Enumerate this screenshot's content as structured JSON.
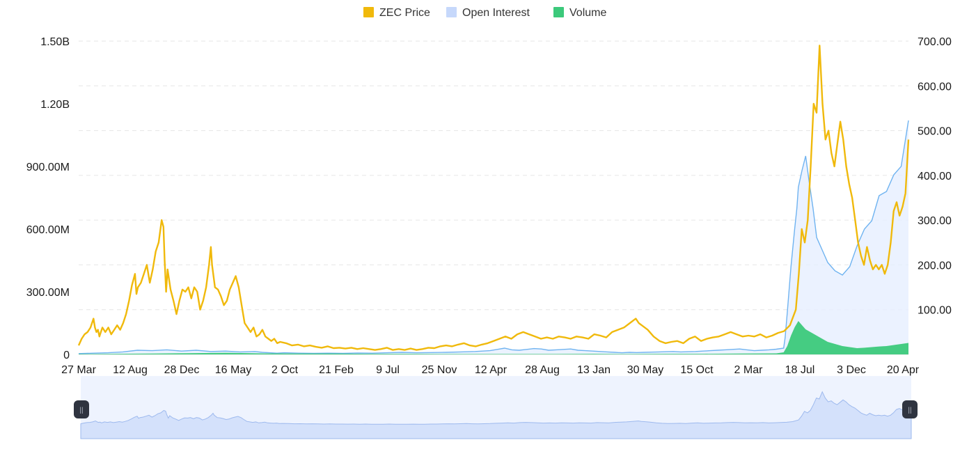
{
  "chart_data": {
    "type": "line",
    "legend": [
      {
        "name": "ZEC Price",
        "color": "#f0b90b"
      },
      {
        "name": "Open Interest",
        "color": "#c6d8fb"
      },
      {
        "name": "Volume",
        "color": "#3cc97b"
      }
    ],
    "legend_position": "top-center",
    "x_tick_labels": [
      "27 Mar",
      "12 Aug",
      "28 Dec",
      "16 May",
      "2 Oct",
      "21 Feb",
      "9 Jul",
      "25 Nov",
      "12 Apr",
      "28 Aug",
      "13 Jan",
      "30 May",
      "15 Oct",
      "2 Mar",
      "18 Jul",
      "3 Dec",
      "20 Apr"
    ],
    "y_left": {
      "tick_labels": [
        "0",
        "300.00M",
        "600.00M",
        "900.00M",
        "1.20B",
        "1.50B"
      ],
      "range": [
        0,
        1500000000
      ]
    },
    "y_right": {
      "tick_labels": [
        "100.00",
        "200.00",
        "300.00",
        "400.00",
        "500.00",
        "600.00",
        "700.00"
      ],
      "range": [
        0,
        700
      ]
    },
    "grid": true,
    "price_points": [
      [
        0,
        20
      ],
      [
        1,
        35
      ],
      [
        2,
        45
      ],
      [
        3,
        50
      ],
      [
        4,
        60
      ],
      [
        5,
        80
      ],
      [
        5.5,
        60
      ],
      [
        6,
        50
      ],
      [
        6.5,
        55
      ],
      [
        7,
        40
      ],
      [
        7.5,
        50
      ],
      [
        8,
        60
      ],
      [
        9,
        50
      ],
      [
        10,
        60
      ],
      [
        11,
        45
      ],
      [
        12,
        55
      ],
      [
        13,
        65
      ],
      [
        14,
        55
      ],
      [
        15,
        70
      ],
      [
        16,
        90
      ],
      [
        17,
        120
      ],
      [
        18,
        155
      ],
      [
        19,
        180
      ],
      [
        19.5,
        135
      ],
      [
        20,
        150
      ],
      [
        21,
        160
      ],
      [
        22,
        180
      ],
      [
        23,
        200
      ],
      [
        24,
        160
      ],
      [
        25,
        190
      ],
      [
        26,
        230
      ],
      [
        27,
        250
      ],
      [
        28,
        300
      ],
      [
        28.6,
        285
      ],
      [
        29,
        210
      ],
      [
        29.5,
        140
      ],
      [
        30,
        190
      ],
      [
        31,
        145
      ],
      [
        32,
        120
      ],
      [
        33,
        90
      ],
      [
        34,
        120
      ],
      [
        35,
        145
      ],
      [
        36,
        140
      ],
      [
        37,
        150
      ],
      [
        38,
        125
      ],
      [
        39,
        150
      ],
      [
        40,
        140
      ],
      [
        41,
        100
      ],
      [
        42,
        120
      ],
      [
        43,
        150
      ],
      [
        44,
        200
      ],
      [
        44.6,
        240
      ],
      [
        45,
        200
      ],
      [
        46,
        150
      ],
      [
        47,
        145
      ],
      [
        48,
        130
      ],
      [
        49,
        110
      ],
      [
        50,
        120
      ],
      [
        51,
        145
      ],
      [
        52,
        160
      ],
      [
        53,
        175
      ],
      [
        54,
        150
      ],
      [
        55,
        110
      ],
      [
        56,
        70
      ],
      [
        57,
        60
      ],
      [
        58,
        50
      ],
      [
        59,
        60
      ],
      [
        60,
        40
      ],
      [
        61,
        45
      ],
      [
        62,
        55
      ],
      [
        63,
        40
      ],
      [
        64,
        35
      ],
      [
        65,
        30
      ],
      [
        66,
        35
      ],
      [
        67,
        25
      ],
      [
        68,
        28
      ],
      [
        70,
        25
      ],
      [
        72,
        20
      ],
      [
        74,
        22
      ],
      [
        76,
        18
      ],
      [
        78,
        20
      ],
      [
        80,
        17
      ],
      [
        82,
        15
      ],
      [
        84,
        18
      ],
      [
        86,
        14
      ],
      [
        88,
        15
      ],
      [
        90,
        13
      ],
      [
        92,
        15
      ],
      [
        94,
        12
      ],
      [
        96,
        14
      ],
      [
        98,
        12
      ],
      [
        100,
        10
      ],
      [
        102,
        12
      ],
      [
        104,
        15
      ],
      [
        106,
        10
      ],
      [
        108,
        12
      ],
      [
        110,
        10
      ],
      [
        112,
        13
      ],
      [
        114,
        10
      ],
      [
        116,
        12
      ],
      [
        118,
        15
      ],
      [
        120,
        14
      ],
      [
        122,
        18
      ],
      [
        124,
        20
      ],
      [
        126,
        18
      ],
      [
        128,
        22
      ],
      [
        130,
        25
      ],
      [
        132,
        20
      ],
      [
        134,
        18
      ],
      [
        136,
        22
      ],
      [
        138,
        25
      ],
      [
        140,
        30
      ],
      [
        142,
        35
      ],
      [
        144,
        40
      ],
      [
        146,
        35
      ],
      [
        148,
        45
      ],
      [
        150,
        50
      ],
      [
        152,
        45
      ],
      [
        154,
        40
      ],
      [
        156,
        35
      ],
      [
        158,
        38
      ],
      [
        160,
        35
      ],
      [
        162,
        40
      ],
      [
        164,
        38
      ],
      [
        166,
        35
      ],
      [
        168,
        40
      ],
      [
        170,
        38
      ],
      [
        172,
        35
      ],
      [
        174,
        45
      ],
      [
        176,
        42
      ],
      [
        178,
        38
      ],
      [
        180,
        50
      ],
      [
        182,
        55
      ],
      [
        184,
        60
      ],
      [
        186,
        70
      ],
      [
        188,
        80
      ],
      [
        189,
        70
      ],
      [
        190,
        65
      ],
      [
        192,
        55
      ],
      [
        194,
        40
      ],
      [
        196,
        30
      ],
      [
        198,
        25
      ],
      [
        200,
        28
      ],
      [
        202,
        30
      ],
      [
        204,
        25
      ],
      [
        206,
        35
      ],
      [
        208,
        40
      ],
      [
        210,
        30
      ],
      [
        212,
        35
      ],
      [
        214,
        38
      ],
      [
        216,
        40
      ],
      [
        218,
        45
      ],
      [
        220,
        50
      ],
      [
        222,
        45
      ],
      [
        224,
        40
      ],
      [
        226,
        42
      ],
      [
        228,
        40
      ],
      [
        230,
        45
      ],
      [
        232,
        38
      ],
      [
        234,
        42
      ],
      [
        236,
        48
      ],
      [
        238,
        52
      ],
      [
        240,
        65
      ],
      [
        242,
        100
      ],
      [
        243,
        180
      ],
      [
        244,
        280
      ],
      [
        245,
        250
      ],
      [
        246,
        300
      ],
      [
        247,
        420
      ],
      [
        248,
        560
      ],
      [
        249,
        540
      ],
      [
        250,
        690
      ],
      [
        251,
        560
      ],
      [
        252,
        480
      ],
      [
        253,
        500
      ],
      [
        254,
        450
      ],
      [
        255,
        420
      ],
      [
        256,
        470
      ],
      [
        257,
        520
      ],
      [
        258,
        480
      ],
      [
        259,
        420
      ],
      [
        260,
        380
      ],
      [
        261,
        350
      ],
      [
        262,
        300
      ],
      [
        263,
        250
      ],
      [
        264,
        220
      ],
      [
        265,
        200
      ],
      [
        266,
        240
      ],
      [
        267,
        210
      ],
      [
        268,
        190
      ],
      [
        269,
        200
      ],
      [
        270,
        190
      ],
      [
        271,
        200
      ],
      [
        272,
        180
      ],
      [
        273,
        200
      ],
      [
        274,
        250
      ],
      [
        275,
        320
      ],
      [
        276,
        340
      ],
      [
        277,
        310
      ],
      [
        278,
        330
      ],
      [
        279,
        360
      ],
      [
        280,
        480
      ]
    ],
    "oi_points": [
      [
        0,
        4
      ],
      [
        20,
        6
      ],
      [
        40,
        8
      ],
      [
        60,
        12
      ],
      [
        80,
        20
      ],
      [
        100,
        18
      ],
      [
        120,
        22
      ],
      [
        140,
        16
      ],
      [
        160,
        20
      ],
      [
        180,
        14
      ],
      [
        200,
        16
      ],
      [
        220,
        12
      ],
      [
        240,
        14
      ],
      [
        250,
        10
      ],
      [
        260,
        8
      ],
      [
        270,
        6
      ],
      [
        280,
        8
      ],
      [
        300,
        6
      ],
      [
        320,
        5
      ],
      [
        340,
        6
      ],
      [
        360,
        5
      ],
      [
        380,
        7
      ],
      [
        400,
        6
      ],
      [
        420,
        8
      ],
      [
        440,
        10
      ],
      [
        460,
        8
      ],
      [
        480,
        9
      ],
      [
        500,
        10
      ],
      [
        520,
        12
      ],
      [
        540,
        14
      ],
      [
        560,
        18
      ],
      [
        570,
        24
      ],
      [
        580,
        30
      ],
      [
        590,
        22
      ],
      [
        600,
        20
      ],
      [
        610,
        24
      ],
      [
        620,
        28
      ],
      [
        630,
        26
      ],
      [
        640,
        20
      ],
      [
        650,
        22
      ],
      [
        660,
        24
      ],
      [
        670,
        26
      ],
      [
        680,
        20
      ],
      [
        690,
        18
      ],
      [
        700,
        16
      ],
      [
        710,
        14
      ],
      [
        720,
        12
      ],
      [
        730,
        10
      ],
      [
        740,
        8
      ],
      [
        750,
        10
      ],
      [
        760,
        9
      ],
      [
        770,
        10
      ],
      [
        780,
        11
      ],
      [
        790,
        12
      ],
      [
        800,
        13
      ],
      [
        810,
        14
      ],
      [
        820,
        12
      ],
      [
        830,
        13
      ],
      [
        840,
        14
      ],
      [
        850,
        16
      ],
      [
        860,
        18
      ],
      [
        870,
        20
      ],
      [
        880,
        22
      ],
      [
        890,
        24
      ],
      [
        900,
        26
      ],
      [
        910,
        22
      ],
      [
        920,
        18
      ],
      [
        930,
        20
      ],
      [
        940,
        22
      ],
      [
        950,
        25
      ],
      [
        960,
        30
      ],
      [
        962,
        80
      ],
      [
        965,
        200
      ],
      [
        970,
        420
      ],
      [
        975,
        600
      ],
      [
        978,
        700
      ],
      [
        980,
        800
      ],
      [
        985,
        880
      ],
      [
        990,
        950
      ],
      [
        995,
        820
      ],
      [
        1000,
        700
      ],
      [
        1005,
        560
      ],
      [
        1010,
        520
      ],
      [
        1015,
        480
      ],
      [
        1020,
        440
      ],
      [
        1025,
        420
      ],
      [
        1030,
        400
      ],
      [
        1040,
        380
      ],
      [
        1050,
        420
      ],
      [
        1060,
        520
      ],
      [
        1070,
        600
      ],
      [
        1080,
        640
      ],
      [
        1090,
        760
      ],
      [
        1100,
        780
      ],
      [
        1110,
        860
      ],
      [
        1120,
        900
      ],
      [
        1130,
        1120
      ]
    ],
    "volume_points": [
      [
        0,
        2
      ],
      [
        50,
        3
      ],
      [
        100,
        4
      ],
      [
        150,
        6
      ],
      [
        200,
        8
      ],
      [
        250,
        5
      ],
      [
        300,
        4
      ],
      [
        350,
        4
      ],
      [
        400,
        3
      ],
      [
        450,
        3
      ],
      [
        500,
        2
      ],
      [
        550,
        2
      ],
      [
        600,
        2
      ],
      [
        650,
        2
      ],
      [
        700,
        3
      ],
      [
        750,
        2
      ],
      [
        800,
        3
      ],
      [
        850,
        3
      ],
      [
        900,
        4
      ],
      [
        950,
        5
      ],
      [
        960,
        10
      ],
      [
        965,
        40
      ],
      [
        970,
        90
      ],
      [
        975,
        130
      ],
      [
        980,
        160
      ],
      [
        985,
        140
      ],
      [
        990,
        120
      ],
      [
        1000,
        100
      ],
      [
        1010,
        80
      ],
      [
        1020,
        60
      ],
      [
        1030,
        50
      ],
      [
        1040,
        40
      ],
      [
        1050,
        35
      ],
      [
        1060,
        30
      ],
      [
        1070,
        32
      ],
      [
        1080,
        35
      ],
      [
        1090,
        38
      ],
      [
        1100,
        40
      ],
      [
        1110,
        45
      ],
      [
        1120,
        50
      ],
      [
        1130,
        55
      ]
    ]
  },
  "navigator": {
    "handle_left_symbol": "||",
    "handle_right_symbol": "||"
  }
}
